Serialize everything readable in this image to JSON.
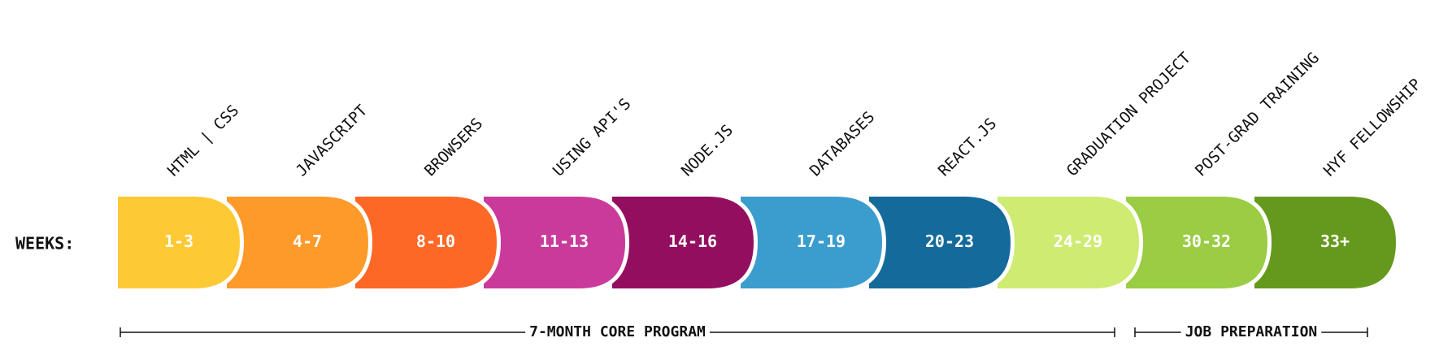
{
  "weeks_label": "WEEKS:",
  "modules": [
    {
      "topic": "HTML | CSS",
      "weeks": "1-3",
      "color": "#fdca35"
    },
    {
      "topic": "JAVASCRIPT",
      "weeks": "4-7",
      "color": "#fd9a2a"
    },
    {
      "topic": "BROWSERS",
      "weeks": "8-10",
      "color": "#fd6826"
    },
    {
      "topic": "USING API'S",
      "weeks": "11-13",
      "color": "#c93a9b"
    },
    {
      "topic": "NODE.JS",
      "weeks": "14-16",
      "color": "#940e5f"
    },
    {
      "topic": "DATABASES",
      "weeks": "17-19",
      "color": "#3b9dce"
    },
    {
      "topic": "REACT.JS",
      "weeks": "20-23",
      "color": "#146a9a"
    },
    {
      "topic": "GRADUATION PROJECT",
      "weeks": "24-29",
      "color": "#ceeb72"
    },
    {
      "topic": "POST-GRAD TRAINING",
      "weeks": "30-32",
      "color": "#9acc44"
    },
    {
      "topic": "HYF FELLOWSHIP",
      "weeks": "33+",
      "color": "#65991e"
    }
  ],
  "phases": [
    {
      "label": "7-MONTH CORE PROGRAM"
    },
    {
      "label": "JOB PREPARATION"
    }
  ]
}
